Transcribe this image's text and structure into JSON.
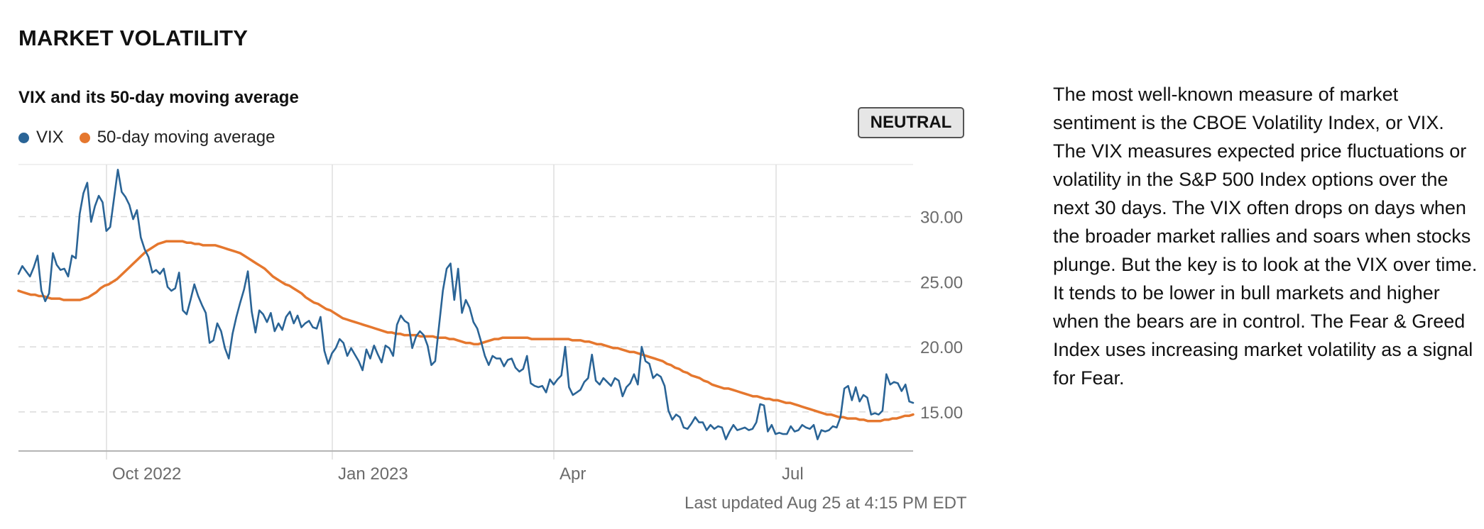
{
  "section_title": "MARKET VOLATILITY",
  "chart_title": "VIX and its 50-day moving average",
  "legend": [
    {
      "label": "VIX",
      "color": "#2a6496"
    },
    {
      "label": "50-day moving average",
      "color": "#e5772e"
    }
  ],
  "rating_badge": "NEUTRAL",
  "last_updated": "Last updated Aug 25 at 4:15 PM EDT",
  "description": "The most well-known measure of market sentiment is the CBOE Volatility Index, or VIX. The VIX measures expected price fluctuations or volatility in the S&P 500 Index options over the next 30 days. The VIX often drops on days when the broader market rallies and soars when stocks plunge. But the key is to look at the VIX over time. It tends to be lower in bull markets and higher when the bears are in control. The Fear & Greed Index uses increasing market volatility as a signal for Fear.",
  "chart_data": {
    "type": "line",
    "title": "VIX and its 50-day moving average",
    "x_ticks": [
      "Oct 2022",
      "Jan 2023",
      "Apr",
      "Jul"
    ],
    "y_ticks": [
      "15.00",
      "20.00",
      "25.00",
      "30.00"
    ],
    "ylim": [
      12,
      34
    ],
    "grid": true,
    "series": [
      {
        "name": "VIX",
        "color": "#2a6496",
        "values": [
          25.6,
          26.2,
          25.8,
          25.4,
          26.1,
          27.0,
          24.3,
          23.5,
          24.1,
          27.2,
          26.3,
          25.9,
          26.0,
          25.4,
          27.0,
          26.8,
          30.2,
          31.8,
          32.6,
          29.6,
          30.8,
          31.6,
          31.1,
          28.9,
          29.2,
          31.4,
          33.6,
          31.9,
          31.5,
          30.9,
          29.8,
          30.5,
          28.4,
          27.5,
          26.9,
          25.7,
          25.9,
          25.6,
          26.0,
          24.6,
          24.3,
          24.5,
          25.7,
          22.8,
          22.5,
          23.6,
          24.8,
          23.9,
          23.2,
          22.6,
          20.3,
          20.5,
          21.8,
          21.2,
          19.9,
          19.1,
          21.0,
          22.3,
          23.4,
          24.4,
          25.8,
          22.7,
          21.1,
          22.8,
          22.5,
          21.9,
          22.6,
          21.2,
          21.8,
          21.3,
          22.3,
          22.7,
          21.8,
          22.4,
          21.5,
          21.8,
          22.0,
          21.5,
          21.4,
          22.3,
          19.7,
          18.7,
          19.5,
          19.9,
          20.6,
          20.3,
          19.3,
          19.9,
          19.4,
          18.9,
          18.2,
          19.8,
          19.1,
          20.1,
          19.4,
          18.8,
          20.1,
          19.9,
          19.3,
          21.7,
          22.4,
          22.0,
          21.8,
          19.9,
          20.8,
          21.2,
          20.9,
          20.1,
          18.6,
          18.9,
          21.6,
          24.3,
          26.0,
          26.4,
          23.6,
          26.0,
          22.6,
          23.6,
          23.0,
          21.9,
          21.4,
          20.4,
          19.3,
          18.6,
          19.3,
          19.1,
          19.1,
          18.5,
          19.0,
          19.1,
          18.4,
          18.1,
          18.3,
          19.3,
          17.2,
          17.0,
          16.9,
          17.0,
          16.5,
          17.5,
          17.1,
          17.5,
          17.8,
          20.0,
          16.9,
          16.3,
          16.5,
          16.7,
          17.3,
          17.6,
          19.4,
          17.4,
          17.1,
          17.6,
          17.3,
          17.0,
          17.6,
          17.4,
          16.2,
          16.9,
          17.2,
          17.9,
          17.1,
          20.0,
          18.9,
          18.7,
          17.6,
          17.9,
          17.7,
          17.0,
          15.1,
          14.4,
          14.8,
          14.6,
          13.8,
          13.7,
          14.1,
          14.6,
          14.2,
          14.2,
          13.6,
          14.0,
          13.7,
          13.9,
          13.8,
          12.9,
          13.5,
          14.0,
          13.6,
          13.7,
          13.8,
          13.6,
          13.7,
          14.2,
          15.6,
          15.5,
          13.5,
          14.0,
          13.3,
          13.4,
          13.3,
          13.3,
          13.9,
          13.5,
          13.6,
          14.0,
          13.8,
          13.7,
          14.0,
          12.9,
          13.6,
          13.5,
          13.6,
          13.9,
          13.8,
          14.6,
          16.8,
          17.0,
          15.9,
          16.9,
          15.8,
          16.3,
          16.1,
          14.8,
          14.9,
          14.8,
          15.1,
          17.9,
          17.1,
          17.3,
          17.2,
          16.6,
          17.1,
          15.8,
          15.7
        ]
      },
      {
        "name": "50-day moving average",
        "color": "#e5772e",
        "values": [
          24.3,
          24.2,
          24.1,
          24.0,
          24.0,
          23.9,
          23.9,
          23.8,
          23.7,
          23.7,
          23.7,
          23.6,
          23.6,
          23.6,
          23.6,
          23.6,
          23.7,
          23.8,
          24.0,
          24.2,
          24.5,
          24.7,
          24.8,
          25.0,
          25.2,
          25.5,
          25.8,
          26.1,
          26.4,
          26.7,
          27.0,
          27.3,
          27.5,
          27.7,
          27.9,
          28.0,
          28.1,
          28.1,
          28.1,
          28.1,
          28.1,
          28.0,
          28.0,
          27.9,
          27.9,
          27.8,
          27.8,
          27.8,
          27.8,
          27.7,
          27.6,
          27.5,
          27.4,
          27.3,
          27.2,
          27.0,
          26.8,
          26.6,
          26.4,
          26.2,
          26.0,
          25.7,
          25.4,
          25.2,
          25.0,
          24.8,
          24.7,
          24.5,
          24.3,
          24.1,
          23.8,
          23.6,
          23.4,
          23.3,
          23.1,
          22.9,
          22.8,
          22.6,
          22.4,
          22.2,
          22.1,
          22.0,
          21.9,
          21.8,
          21.7,
          21.6,
          21.5,
          21.4,
          21.3,
          21.2,
          21.1,
          21.1,
          21.0,
          21.0,
          20.9,
          20.9,
          20.9,
          20.9,
          20.8,
          20.8,
          20.8,
          20.8,
          20.7,
          20.7,
          20.7,
          20.6,
          20.6,
          20.5,
          20.4,
          20.3,
          20.3,
          20.2,
          20.2,
          20.3,
          20.4,
          20.5,
          20.6,
          20.6,
          20.7,
          20.7,
          20.7,
          20.7,
          20.7,
          20.7,
          20.7,
          20.6,
          20.6,
          20.6,
          20.6,
          20.6,
          20.6,
          20.6,
          20.6,
          20.6,
          20.6,
          20.5,
          20.5,
          20.5,
          20.4,
          20.4,
          20.3,
          20.2,
          20.2,
          20.1,
          20.0,
          19.9,
          19.9,
          19.8,
          19.7,
          19.6,
          19.6,
          19.5,
          19.4,
          19.3,
          19.2,
          19.1,
          19.0,
          18.9,
          18.7,
          18.6,
          18.4,
          18.3,
          18.1,
          18.0,
          17.8,
          17.7,
          17.6,
          17.4,
          17.3,
          17.1,
          17.0,
          16.9,
          16.8,
          16.8,
          16.7,
          16.6,
          16.5,
          16.4,
          16.3,
          16.2,
          16.2,
          16.1,
          16.0,
          16.0,
          15.9,
          15.9,
          15.8,
          15.7,
          15.7,
          15.6,
          15.5,
          15.4,
          15.3,
          15.2,
          15.1,
          15.0,
          14.9,
          14.8,
          14.8,
          14.7,
          14.6,
          14.6,
          14.5,
          14.5,
          14.5,
          14.4,
          14.4,
          14.3,
          14.3,
          14.3,
          14.3,
          14.4,
          14.4,
          14.5,
          14.5,
          14.6,
          14.7,
          14.7,
          14.8
        ]
      }
    ]
  }
}
